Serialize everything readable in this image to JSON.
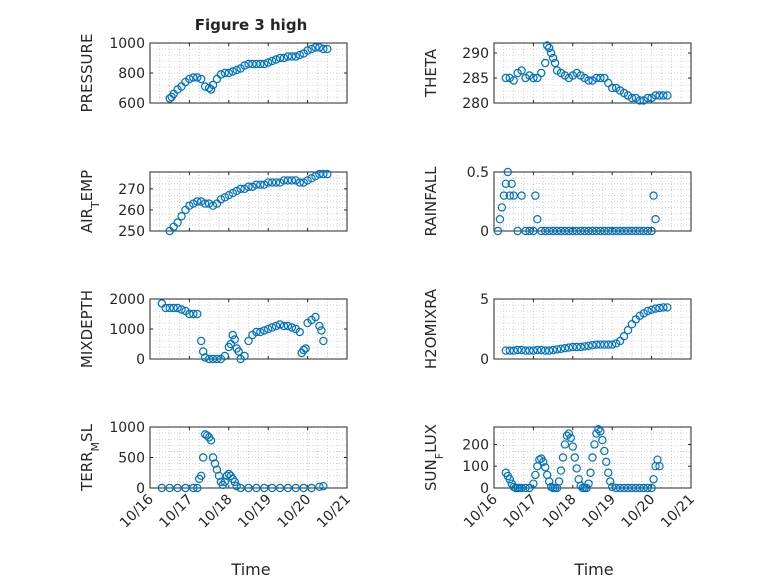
{
  "chart_data": {
    "type": "scatter",
    "title": "Figure 3 high",
    "colors": {
      "marker": "#0072BD",
      "axis": "#262626",
      "grid": "#b4b4b4",
      "background": "#ffffff"
    },
    "x_tick_labels": [
      "10/16",
      "10/17",
      "10/18",
      "10/19",
      "10/20",
      "10/21"
    ],
    "x_range": [
      0,
      5
    ],
    "xlabel": "Time",
    "panels": [
      {
        "name": "PRESSURE",
        "ylabel": "PRESSURE",
        "ylim": [
          600,
          1000
        ],
        "yticks": [
          600,
          800,
          1000
        ],
        "x": [
          0.5,
          0.55,
          0.6,
          0.7,
          0.8,
          0.9,
          1.0,
          1.1,
          1.2,
          1.3,
          1.4,
          1.5,
          1.55,
          1.6,
          1.7,
          1.8,
          1.9,
          2.0,
          2.1,
          2.2,
          2.3,
          2.4,
          2.5,
          2.6,
          2.7,
          2.8,
          2.9,
          3.0,
          3.1,
          3.2,
          3.3,
          3.4,
          3.5,
          3.6,
          3.7,
          3.8,
          3.9,
          4.0,
          4.1,
          4.2,
          4.3,
          4.4,
          4.5
        ],
        "y": [
          630,
          640,
          660,
          690,
          710,
          740,
          760,
          770,
          770,
          760,
          710,
          700,
          690,
          720,
          760,
          790,
          800,
          800,
          810,
          820,
          830,
          850,
          860,
          860,
          860,
          860,
          860,
          870,
          880,
          890,
          900,
          900,
          910,
          910,
          910,
          920,
          930,
          950,
          960,
          970,
          970,
          960,
          960
        ]
      },
      {
        "name": "THETA",
        "ylabel": "THETA",
        "ylim": [
          280,
          292
        ],
        "yticks": [
          280,
          285,
          290
        ],
        "x": [
          0.3,
          0.4,
          0.5,
          0.6,
          0.7,
          0.8,
          0.9,
          1.0,
          1.1,
          1.2,
          1.3,
          1.35,
          1.4,
          1.45,
          1.5,
          1.55,
          1.6,
          1.7,
          1.8,
          1.9,
          2.0,
          2.1,
          2.2,
          2.3,
          2.4,
          2.5,
          2.6,
          2.7,
          2.8,
          2.9,
          3.0,
          3.1,
          3.2,
          3.3,
          3.4,
          3.5,
          3.6,
          3.7,
          3.8,
          3.9,
          4.0,
          4.1,
          4.2,
          4.3,
          4.4
        ],
        "y": [
          285,
          285,
          284.5,
          286,
          286.5,
          285,
          285.5,
          285,
          285,
          286,
          288,
          291.5,
          291,
          290,
          289,
          288,
          286.5,
          286,
          285.5,
          285,
          285.5,
          286,
          285.5,
          285,
          284.5,
          284.5,
          285,
          285,
          285,
          284,
          283,
          283,
          282.5,
          282,
          281.5,
          281,
          281,
          280.5,
          280.5,
          281,
          281,
          281.5,
          281.5,
          281.5,
          281.5
        ]
      },
      {
        "name": "AIR_TEMP",
        "ylabel": "AIR_TEMP",
        "ylim": [
          250,
          278
        ],
        "yticks": [
          250,
          260,
          270
        ],
        "x": [
          0.5,
          0.6,
          0.7,
          0.8,
          0.9,
          1.0,
          1.1,
          1.2,
          1.3,
          1.4,
          1.5,
          1.6,
          1.7,
          1.8,
          1.9,
          2.0,
          2.1,
          2.2,
          2.3,
          2.4,
          2.5,
          2.6,
          2.7,
          2.8,
          2.9,
          3.0,
          3.1,
          3.2,
          3.3,
          3.4,
          3.5,
          3.6,
          3.7,
          3.8,
          3.9,
          4.0,
          4.1,
          4.2,
          4.3,
          4.4,
          4.5
        ],
        "y": [
          250,
          252,
          254,
          257,
          260,
          262,
          263,
          264,
          264,
          263,
          263,
          262,
          263,
          265,
          266,
          267,
          268,
          269,
          270,
          270,
          271,
          271,
          272,
          272,
          272,
          273,
          273,
          273,
          273,
          274,
          274,
          274,
          274,
          273,
          273,
          274,
          275,
          276,
          277,
          277,
          277
        ]
      },
      {
        "name": "RAINFALL",
        "ylabel": "RAINFALL",
        "ylim": [
          0,
          0.5
        ],
        "yticks": [
          0,
          0.5
        ],
        "x": [
          0.1,
          0.15,
          0.2,
          0.25,
          0.3,
          0.35,
          0.4,
          0.45,
          0.5,
          0.6,
          0.7,
          0.8,
          0.9,
          1.0,
          1.05,
          1.1,
          1.2,
          1.3,
          1.4,
          1.5,
          1.6,
          1.7,
          1.8,
          1.9,
          2.0,
          2.1,
          2.2,
          2.3,
          2.4,
          2.5,
          2.6,
          2.7,
          2.8,
          2.9,
          3.0,
          3.1,
          3.2,
          3.3,
          3.4,
          3.5,
          3.6,
          3.7,
          3.8,
          3.9,
          4.0,
          4.05,
          4.1
        ],
        "y": [
          0,
          0.1,
          0.2,
          0.3,
          0.4,
          0.5,
          0.3,
          0.4,
          0.3,
          0,
          0.3,
          0,
          0,
          0,
          0.3,
          0.1,
          0,
          0,
          0,
          0,
          0,
          0,
          0,
          0,
          0,
          0,
          0,
          0,
          0,
          0,
          0,
          0,
          0,
          0,
          0,
          0,
          0,
          0,
          0,
          0,
          0,
          0,
          0,
          0,
          0,
          0.3,
          0.1
        ]
      },
      {
        "name": "MIXDEPTH",
        "ylabel": "MIXDEPTH",
        "ylim": [
          0,
          2000
        ],
        "yticks": [
          0,
          1000,
          2000
        ],
        "x": [
          0.3,
          0.4,
          0.5,
          0.6,
          0.7,
          0.8,
          0.9,
          1.0,
          1.1,
          1.2,
          1.3,
          1.35,
          1.4,
          1.5,
          1.6,
          1.7,
          1.8,
          1.9,
          2.0,
          2.05,
          2.1,
          2.15,
          2.2,
          2.25,
          2.3,
          2.4,
          2.5,
          2.6,
          2.7,
          2.8,
          2.9,
          3.0,
          3.1,
          3.2,
          3.3,
          3.4,
          3.5,
          3.6,
          3.7,
          3.8,
          3.85,
          3.9,
          3.95,
          4.0,
          4.1,
          4.2,
          4.3,
          4.35,
          4.4
        ],
        "y": [
          1850,
          1700,
          1700,
          1700,
          1700,
          1650,
          1600,
          1500,
          1500,
          1500,
          600,
          250,
          50,
          0,
          0,
          0,
          0,
          100,
          400,
          500,
          800,
          650,
          350,
          250,
          0,
          100,
          600,
          800,
          900,
          900,
          950,
          1000,
          1050,
          1100,
          1150,
          1100,
          1100,
          1050,
          1000,
          900,
          200,
          300,
          350,
          1200,
          1300,
          1400,
          1100,
          950,
          600
        ]
      },
      {
        "name": "H2OMIXRA",
        "ylabel": "H2OMIXRA",
        "ylim": [
          0,
          5
        ],
        "yticks": [
          0,
          5
        ],
        "x": [
          0.3,
          0.4,
          0.5,
          0.6,
          0.7,
          0.8,
          0.9,
          1.0,
          1.1,
          1.2,
          1.3,
          1.4,
          1.5,
          1.6,
          1.7,
          1.8,
          1.9,
          2.0,
          2.1,
          2.2,
          2.3,
          2.4,
          2.5,
          2.6,
          2.7,
          2.8,
          2.9,
          3.0,
          3.1,
          3.2,
          3.3,
          3.4,
          3.5,
          3.6,
          3.7,
          3.8,
          3.9,
          4.0,
          4.1,
          4.2,
          4.3,
          4.4
        ],
        "y": [
          0.7,
          0.7,
          0.7,
          0.75,
          0.75,
          0.7,
          0.7,
          0.7,
          0.75,
          0.75,
          0.7,
          0.7,
          0.75,
          0.8,
          0.85,
          0.9,
          0.95,
          1.0,
          1.0,
          1.0,
          1.05,
          1.1,
          1.15,
          1.2,
          1.2,
          1.2,
          1.2,
          1.2,
          1.3,
          1.5,
          1.9,
          2.4,
          2.9,
          3.3,
          3.6,
          3.8,
          4.0,
          4.1,
          4.2,
          4.25,
          4.3,
          4.3
        ]
      },
      {
        "name": "TERR_MSL",
        "ylabel": "TERR_MSL",
        "ylim": [
          0,
          1000
        ],
        "yticks": [
          0,
          500,
          1000
        ],
        "x": [
          0.3,
          0.5,
          0.7,
          0.9,
          1.1,
          1.2,
          1.25,
          1.3,
          1.35,
          1.4,
          1.45,
          1.5,
          1.55,
          1.6,
          1.65,
          1.7,
          1.75,
          1.8,
          1.85,
          1.9,
          1.95,
          2.0,
          2.05,
          2.1,
          2.15,
          2.2,
          2.3,
          2.5,
          2.7,
          2.9,
          3.1,
          3.3,
          3.5,
          3.7,
          3.9,
          4.1,
          4.3,
          4.4
        ],
        "y": [
          0,
          0,
          0,
          0,
          0,
          0,
          150,
          200,
          500,
          880,
          860,
          830,
          780,
          500,
          400,
          300,
          200,
          100,
          50,
          100,
          200,
          230,
          200,
          150,
          100,
          30,
          0,
          0,
          0,
          0,
          0,
          0,
          0,
          0,
          0,
          0,
          20,
          30
        ]
      },
      {
        "name": "SUN_FLUX",
        "ylabel": "SUN_FLUX",
        "ylim": [
          0,
          280
        ],
        "yticks": [
          0,
          100,
          200
        ],
        "x": [
          0.3,
          0.35,
          0.4,
          0.45,
          0.5,
          0.55,
          0.6,
          0.65,
          0.7,
          0.8,
          0.9,
          1.0,
          1.05,
          1.1,
          1.15,
          1.2,
          1.25,
          1.3,
          1.35,
          1.4,
          1.45,
          1.5,
          1.55,
          1.6,
          1.65,
          1.7,
          1.75,
          1.8,
          1.85,
          1.9,
          1.95,
          2.0,
          2.05,
          2.1,
          2.15,
          2.2,
          2.25,
          2.3,
          2.35,
          2.4,
          2.45,
          2.5,
          2.55,
          2.6,
          2.65,
          2.7,
          2.75,
          2.8,
          2.85,
          2.9,
          2.95,
          3.0,
          3.1,
          3.2,
          3.3,
          3.4,
          3.5,
          3.6,
          3.7,
          3.8,
          3.9,
          4.0,
          4.05,
          4.1,
          4.15,
          4.2
        ],
        "y": [
          70,
          55,
          40,
          20,
          5,
          0,
          0,
          0,
          0,
          0,
          0,
          20,
          60,
          100,
          130,
          135,
          120,
          95,
          60,
          30,
          5,
          0,
          0,
          0,
          30,
          80,
          140,
          200,
          240,
          250,
          230,
          190,
          140,
          90,
          40,
          10,
          0,
          0,
          0,
          20,
          70,
          140,
          200,
          250,
          270,
          260,
          220,
          170,
          120,
          70,
          30,
          5,
          0,
          0,
          0,
          0,
          0,
          0,
          0,
          0,
          0,
          0,
          40,
          100,
          130,
          100
        ]
      }
    ]
  }
}
